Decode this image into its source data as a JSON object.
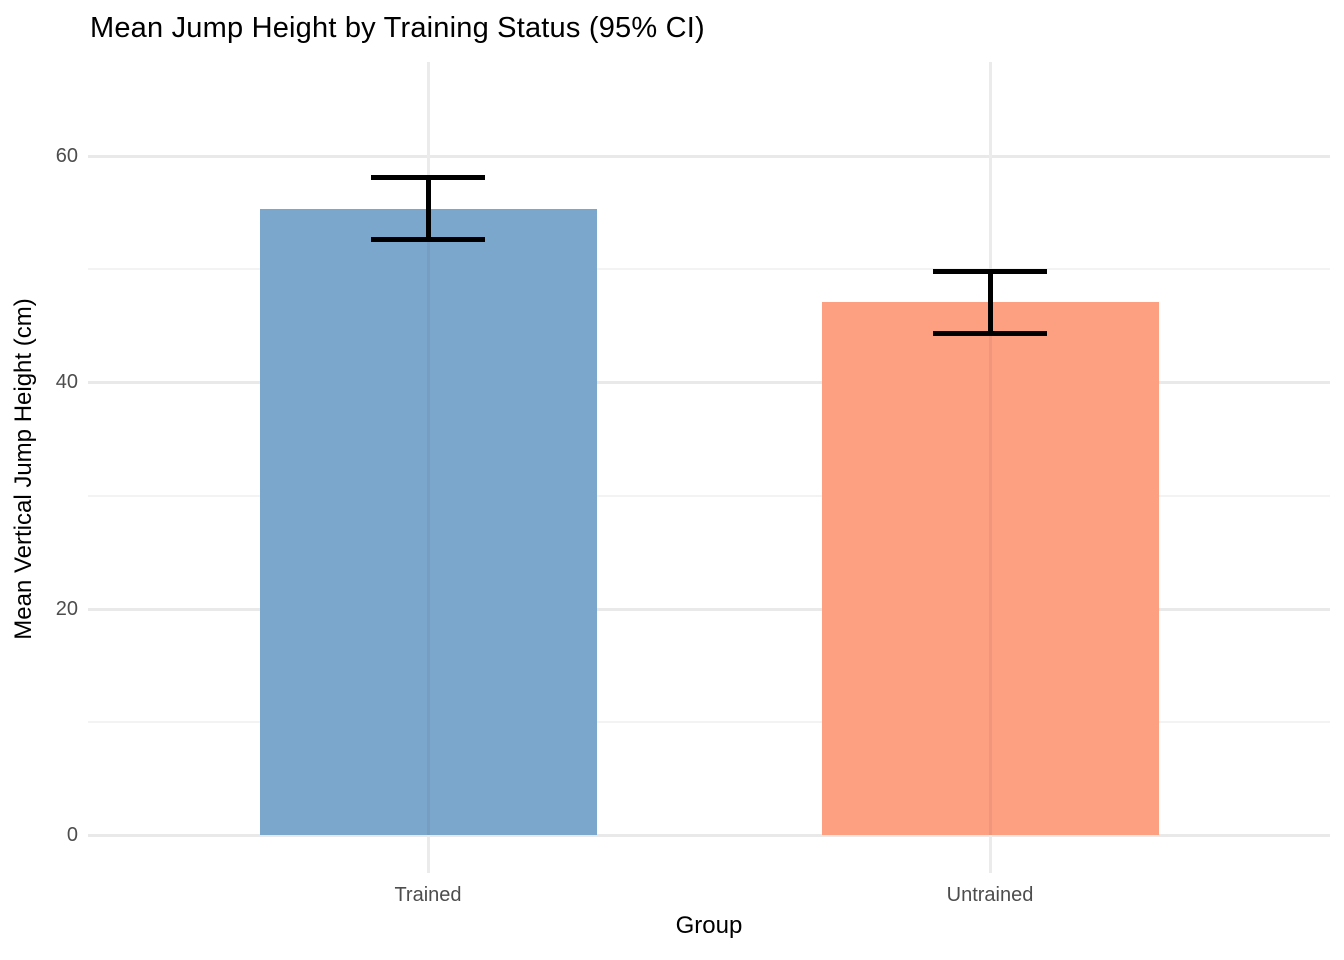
{
  "chart_data": {
    "type": "bar",
    "title": "Mean Jump Height by Training Status (95% CI)",
    "xlabel": "Group",
    "ylabel": "Mean Vertical Jump Height (cm)",
    "categories": [
      "Trained",
      "Untrained"
    ],
    "values": [
      55.3,
      47.1
    ],
    "ci_low": [
      52.6,
      44.3
    ],
    "ci_high": [
      58.1,
      49.8
    ],
    "bar_colors": [
      "#7CA7CC",
      "#FDA082"
    ],
    "errorbar_color": "#000000",
    "y_ticks": [
      0,
      20,
      40,
      60
    ],
    "y_minor_ticks": [
      10,
      30,
      50
    ],
    "ylim": [
      0,
      68
    ],
    "grid": "on",
    "legend": "none",
    "background": "#FFFFFF",
    "gridline_color": "#EBEBEB",
    "tick_label_color": "#4D4D4D"
  }
}
